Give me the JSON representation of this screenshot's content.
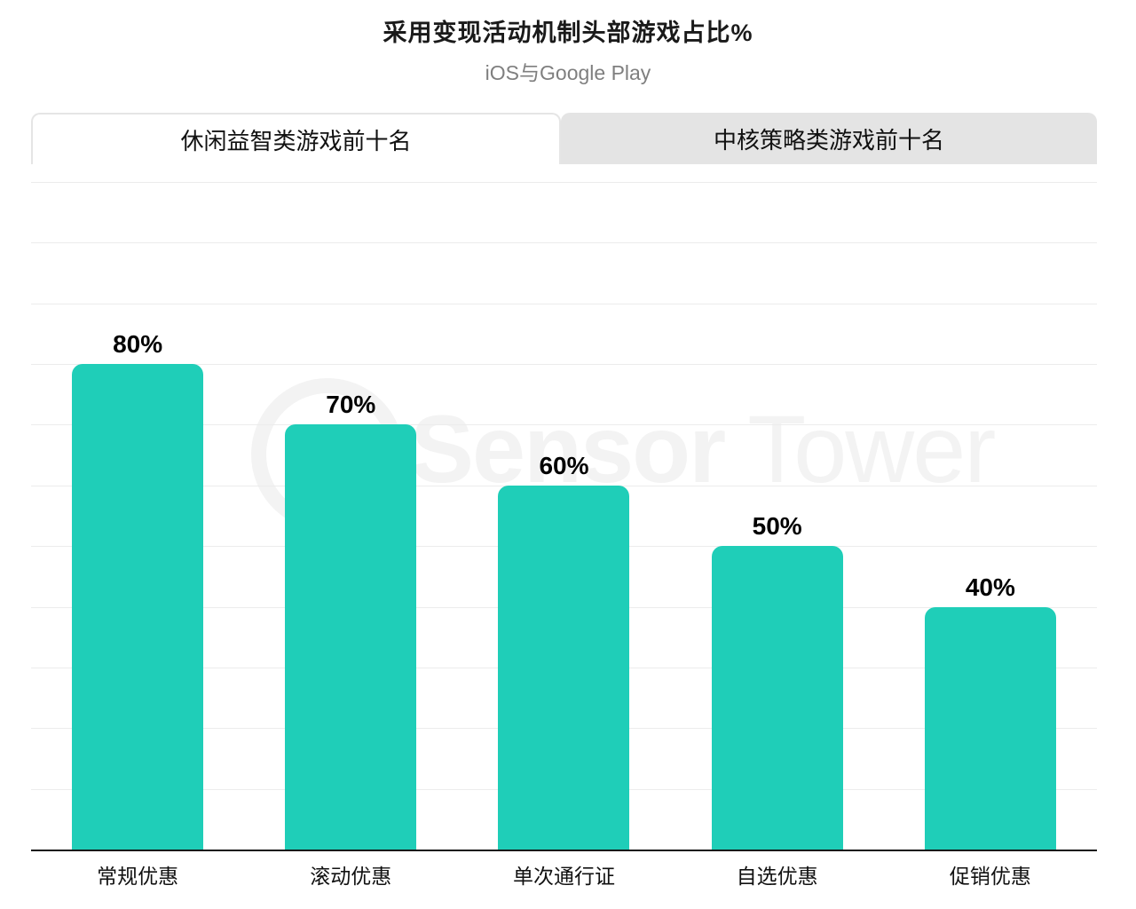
{
  "header": {
    "title": "采用变现活动机制头部游戏占比%",
    "subtitle": "iOS与Google Play"
  },
  "tabs": [
    {
      "label": "休闲益智类游戏前十名",
      "active": true
    },
    {
      "label": "中核策略类游戏前十名",
      "active": false
    }
  ],
  "watermark": {
    "bold_text": "Sensor",
    "light_text": "Tower"
  },
  "colors": {
    "bar": "#1fceb8",
    "tab_inactive_bg": "#e4e4e4",
    "tab_border": "#e5e5e5",
    "gridline": "#ececec",
    "axis": "#161616",
    "subtitle": "#7f7f7f",
    "watermark": "#f3f3f3"
  },
  "chart_data": {
    "type": "bar",
    "title": "采用变现活动机制头部游戏占比%",
    "subtitle": "iOS与Google Play",
    "categories": [
      "常规优惠",
      "滚动优惠",
      "单次通行证",
      "自选优惠",
      "促销优惠"
    ],
    "values": [
      80,
      70,
      60,
      50,
      40
    ],
    "value_labels": [
      "80%",
      "70%",
      "60%",
      "50%",
      "40%"
    ],
    "xlabel": "",
    "ylabel": "",
    "ylim": [
      0,
      110
    ],
    "grid": true,
    "gridline_interval": 10,
    "legend": false,
    "bar_color": "#1fceb8"
  }
}
